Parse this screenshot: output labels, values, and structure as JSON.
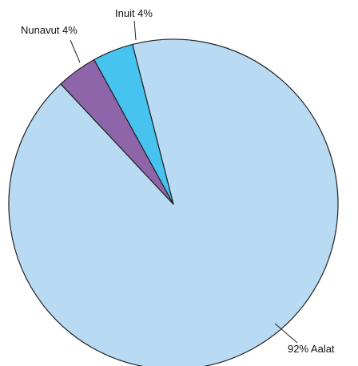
{
  "chart_data": {
    "type": "pie",
    "start_angle_deg": -14.4,
    "direction": "clockwise",
    "slices": [
      {
        "label": "Aalat",
        "value": 92,
        "display": "92% Aalat",
        "color": "#b8daf3"
      },
      {
        "label": "Nunavut",
        "value": 4,
        "display": "Nunavut 4%",
        "color": "#8f65aa"
      },
      {
        "label": "Inuit",
        "value": 4,
        "display": "Inuit 4%",
        "color": "#46c3ee"
      }
    ],
    "title": "",
    "legend": "none"
  }
}
